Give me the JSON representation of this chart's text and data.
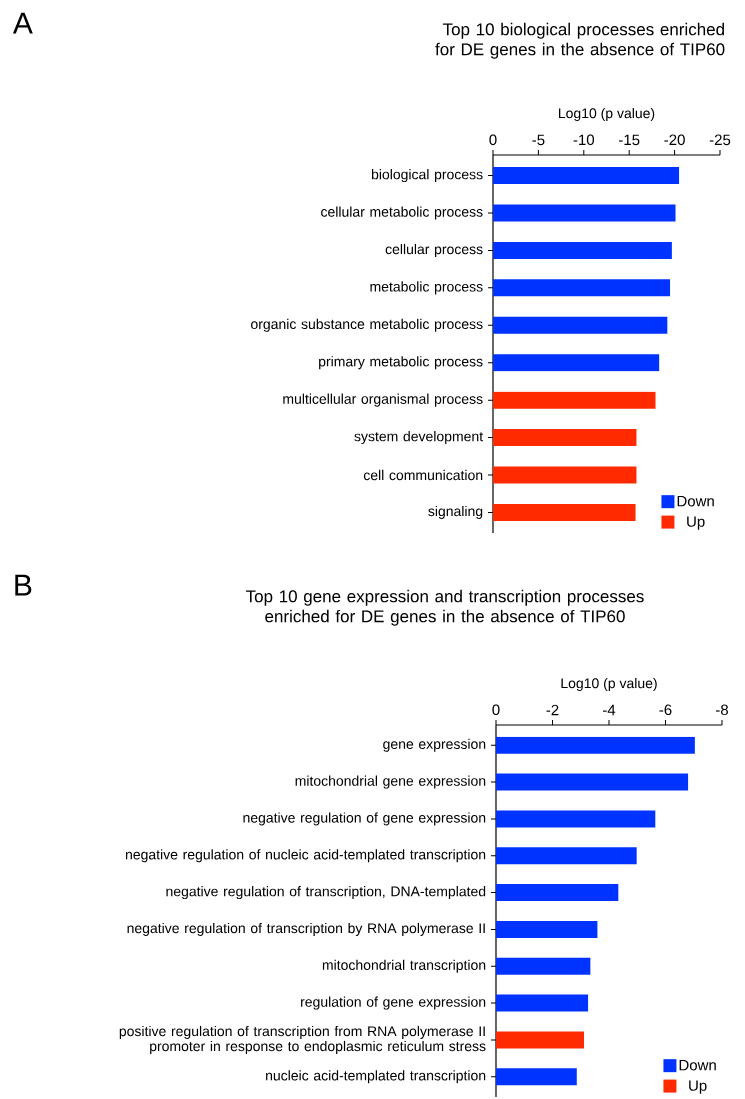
{
  "chart_data": [
    {
      "type": "bar",
      "orientation": "horizontal",
      "title": "Top 10 biological processes enriched\nfor DE genes in the absence of TIP60",
      "xlabel": "Log10 (p value)",
      "annotations": [
        "A"
      ],
      "categories": [
        "biological process",
        "cellular metabolic process",
        "cellular process",
        "metabolic process",
        "organic substance metabolic process",
        "primary metabolic process",
        "multicellular organismal process",
        "system development",
        "cell communication",
        "signaling"
      ],
      "series": [
        {
          "name": "Down",
          "color": "#0033ff",
          "values": [
            -20.5,
            -20.1,
            -19.7,
            -19.5,
            -19.2,
            -18.3,
            null,
            null,
            null,
            null
          ]
        },
        {
          "name": "Up",
          "color": "#ff2a00",
          "values": [
            null,
            null,
            null,
            null,
            null,
            null,
            -17.9,
            -15.8,
            -15.8,
            -15.7
          ]
        }
      ],
      "xlim": [
        0,
        -25
      ],
      "xticks": [
        0,
        -5,
        -10,
        -15,
        -20,
        -25
      ],
      "legend": "bottom right",
      "grid": false
    },
    {
      "type": "bar",
      "orientation": "horizontal",
      "title": "Top 10 gene expression and transcription processes\nenriched for DE genes in the absence of TIP60",
      "xlabel": "Log10 (p value)",
      "annotations": [
        "B"
      ],
      "categories": [
        "gene expression",
        "mitochondrial gene expression",
        "negative regulation of gene expression",
        "negative regulation of nucleic acid-templated transcription",
        "negative regulation of transcription, DNA-templated",
        "negative regulation of transcription by RNA polymerase II",
        "mitochondrial transcription",
        "regulation of gene expression",
        "positive regulation of transcription from RNA polymerase II\npromoter in response to endoplasmic reticulum stress",
        "nucleic acid-templated transcription"
      ],
      "series": [
        {
          "name": "Down",
          "color": "#0033ff",
          "values": [
            -7.04,
            -6.8,
            -5.64,
            -4.98,
            -4.33,
            -3.59,
            -3.34,
            -3.26,
            null,
            -2.86
          ]
        },
        {
          "name": "Up",
          "color": "#ff2a00",
          "values": [
            null,
            null,
            null,
            null,
            null,
            null,
            null,
            null,
            -3.12,
            null
          ]
        }
      ],
      "xlim": [
        0,
        -8
      ],
      "xticks": [
        0,
        -2,
        -4,
        -6,
        -8
      ],
      "legend": "bottom right",
      "grid": false
    }
  ]
}
